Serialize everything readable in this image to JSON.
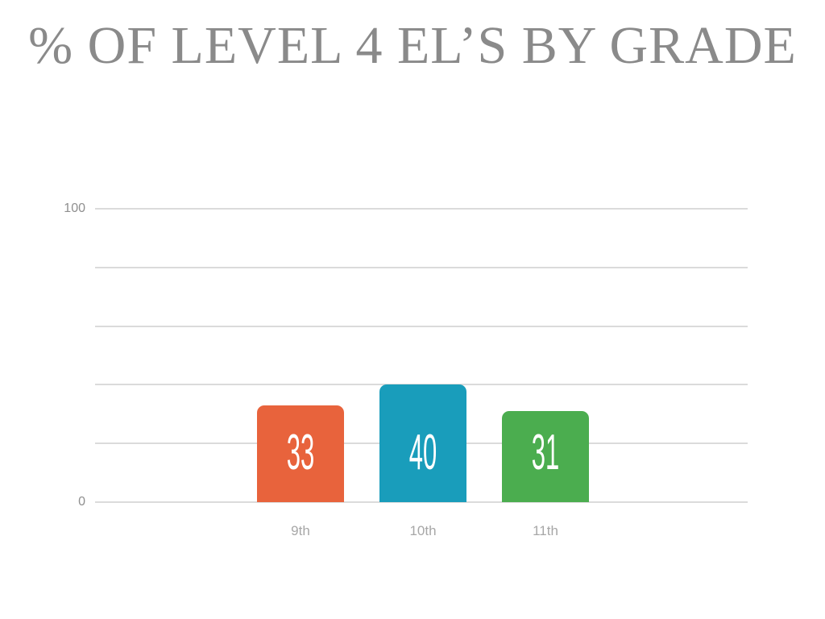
{
  "page": {
    "background_color": "#FFFFFF"
  },
  "chart_data": {
    "type": "bar",
    "title": "% OF LEVEL 4 EL’S BY GRADE",
    "title_color": "#8A8A8A",
    "categories": [
      "9th",
      "10th",
      "11th"
    ],
    "values": [
      33,
      40,
      31
    ],
    "value_labels": [
      "33",
      "40",
      "31"
    ],
    "bar_colors": [
      "#E8633C",
      "#199DBB",
      "#4BAD4F"
    ],
    "value_label_color": "#FFFFFF",
    "xlabel": "",
    "ylabel": "",
    "ylim": [
      0,
      100
    ],
    "yticks_visible": [
      "100",
      "0"
    ],
    "gridlines": {
      "count": 6,
      "step": 20,
      "color": "#DBDBDB",
      "shown": true
    },
    "legend": "none",
    "axis_text_color": "#8F8F8F",
    "category_text_color": "#A7A7A7"
  }
}
